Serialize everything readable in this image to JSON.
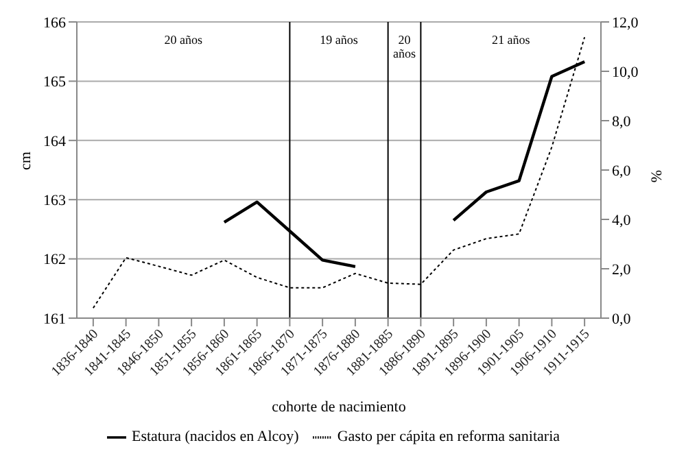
{
  "chart_data": {
    "type": "line",
    "xlabel": "cohorte de nacimiento",
    "ylabel": "cm",
    "y2label": "%",
    "categories": [
      "1836-1840",
      "1841-1845",
      "1846-1850",
      "1851-1855",
      "1856-1860",
      "1861-1865",
      "1866-1870",
      "1871-1875",
      "1876-1880",
      "1881-1885",
      "1886-1890",
      "1891-1895",
      "1896-1900",
      "1901-1905",
      "1906-1910",
      "1911-1915"
    ],
    "series": [
      {
        "name": "Estatura (nacidos en Alcoy)",
        "color": "#000000",
        "line_style": "solid",
        "values": [
          null,
          null,
          null,
          null,
          162.62,
          162.96,
          162.47,
          161.98,
          161.87,
          null,
          null,
          162.65,
          163.13,
          163.32,
          165.08,
          165.33
        ]
      },
      {
        "name": "Gasto per cápita en reforma sanitaria",
        "color": "#000000",
        "line_style": "dotted",
        "axis": "y2",
        "values": [
          0.41,
          2.45,
          2.1,
          1.74,
          2.35,
          1.65,
          1.23,
          1.23,
          1.81,
          1.42,
          1.37,
          2.76,
          3.22,
          3.41,
          6.93,
          11.38
        ]
      }
    ],
    "ylim": [
      161,
      166
    ],
    "yticks": [
      161,
      162,
      163,
      164,
      165,
      166
    ],
    "y2lim": [
      0,
      12
    ],
    "y2ticks": [
      {
        "value": 0,
        "label": "0,0"
      },
      {
        "value": 2,
        "label": "2,0"
      },
      {
        "value": 4,
        "label": "4,0"
      },
      {
        "value": 6,
        "label": "6,0"
      },
      {
        "value": 8,
        "label": "8,0"
      },
      {
        "value": 10,
        "label": "10,0"
      },
      {
        "value": 12,
        "label": "12,0"
      }
    ],
    "ref_lines": [
      {
        "axis": "x",
        "value": "1866-1870",
        "label": null
      },
      {
        "axis": "x",
        "value": "1881-1885",
        "label": null
      },
      {
        "axis": "x",
        "value": "1886-1890",
        "label": null
      }
    ],
    "annotations": [
      "20 años",
      "19 años",
      "20 años",
      "21 años"
    ],
    "grid": "y",
    "legend": "bottom",
    "marker": "none"
  }
}
